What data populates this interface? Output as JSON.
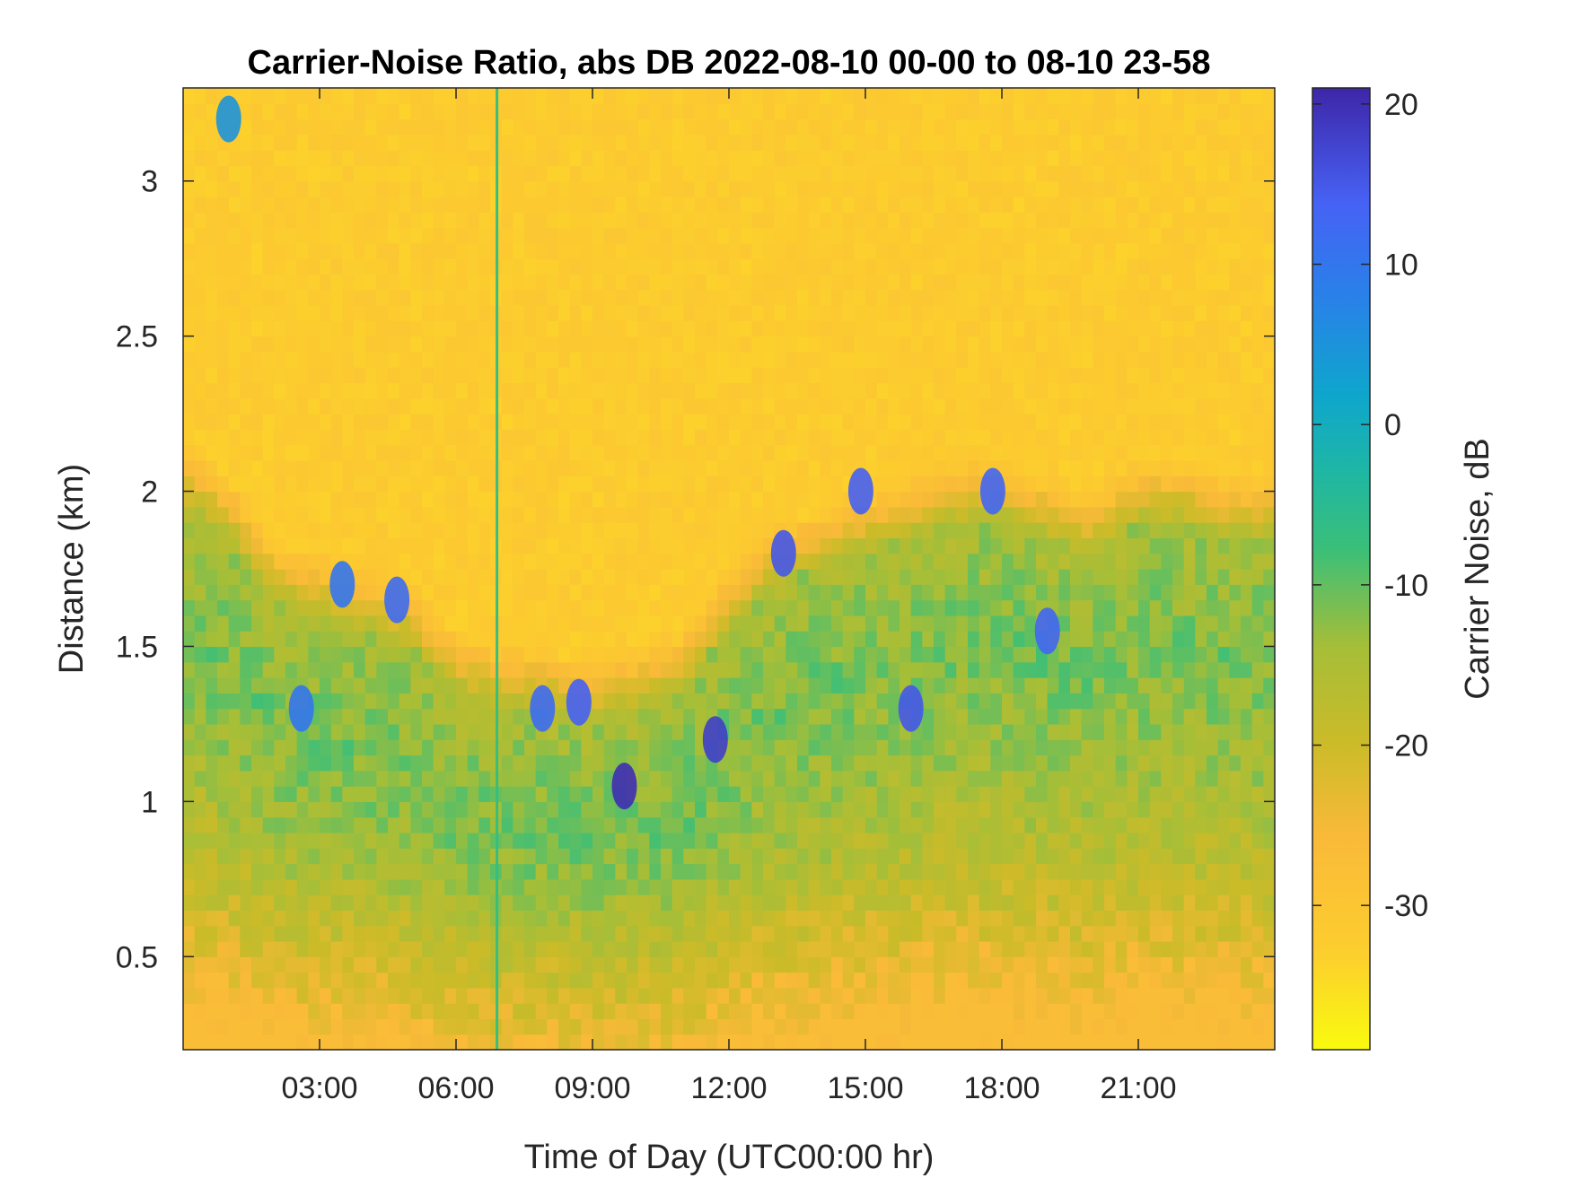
{
  "chart_data": {
    "type": "heatmap",
    "title": "Carrier-Noise Ratio, abs DB 2022-08-10 00-00 to 08-10 23-58",
    "xlabel": "Time of Day (UTC00:00 hr)",
    "ylabel": "Distance (km)",
    "colorbar_label": "Carrier Noise, dB",
    "x_unit": "hour of day",
    "xlim": [
      0,
      24
    ],
    "ylim": [
      0.2,
      3.3
    ],
    "clim": [
      -39,
      21
    ],
    "x_ticks": [
      3,
      6,
      9,
      12,
      15,
      18,
      21
    ],
    "x_tick_labels": [
      "03:00",
      "06:00",
      "09:00",
      "12:00",
      "15:00",
      "18:00",
      "21:00"
    ],
    "y_ticks": [
      0.5,
      1,
      1.5,
      2,
      2.5,
      3
    ],
    "y_tick_labels": [
      "0.5",
      "1",
      "1.5",
      "2",
      "2.5",
      "3"
    ],
    "colorbar_ticks": [
      20,
      10,
      0,
      -10,
      -20,
      -30
    ],
    "colorbar_tick_labels": [
      "20",
      "10",
      "0",
      "-10",
      "-20",
      "-30"
    ],
    "colormap": "parula",
    "background_level_db": -32,
    "boundary_layer_top_km": {
      "x": [
        0,
        1,
        2,
        3,
        4,
        5,
        6,
        7,
        8,
        9,
        10,
        11,
        12,
        13,
        14,
        15,
        16,
        17,
        18,
        19,
        20,
        21,
        22,
        23,
        24
      ],
      "y": [
        2.1,
        2.0,
        1.8,
        1.75,
        1.7,
        1.65,
        1.5,
        1.45,
        1.45,
        1.4,
        1.45,
        1.5,
        1.7,
        1.85,
        1.9,
        1.95,
        2.0,
        2.05,
        2.05,
        2.0,
        1.95,
        2.05,
        2.05,
        2.0,
        2.0
      ]
    },
    "strong_return_patches": [
      {
        "x": 9.7,
        "y": 1.05,
        "value_db": 20
      },
      {
        "x": 11.7,
        "y": 1.2,
        "value_db": 18
      },
      {
        "x": 13.2,
        "y": 1.8,
        "value_db": 15
      },
      {
        "x": 14.9,
        "y": 2.0,
        "value_db": 14
      },
      {
        "x": 16.0,
        "y": 1.3,
        "value_db": 15
      },
      {
        "x": 17.8,
        "y": 2.0,
        "value_db": 13
      },
      {
        "x": 19.0,
        "y": 1.55,
        "value_db": 13
      },
      {
        "x": 8.7,
        "y": 1.32,
        "value_db": 14
      },
      {
        "x": 7.9,
        "y": 1.3,
        "value_db": 12
      },
      {
        "x": 4.7,
        "y": 1.65,
        "value_db": 12
      },
      {
        "x": 3.5,
        "y": 1.7,
        "value_db": 10
      },
      {
        "x": 2.6,
        "y": 1.3,
        "value_db": 10
      },
      {
        "x": 1.0,
        "y": 3.2,
        "value_db": 5
      }
    ],
    "vertical_line": {
      "x": 6.9,
      "value_db": -7
    }
  }
}
